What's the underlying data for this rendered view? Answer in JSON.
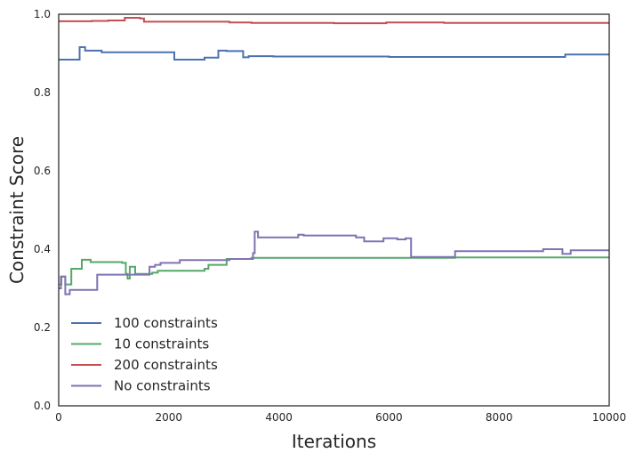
{
  "chart_data": {
    "type": "line",
    "xlabel": "Iterations",
    "ylabel": "Constraint Score",
    "xlim": [
      0,
      10000
    ],
    "ylim": [
      0.0,
      1.0
    ],
    "x_ticks": [
      0,
      2000,
      4000,
      6000,
      8000,
      10000
    ],
    "x_tick_labels": [
      "0",
      "2000",
      "4000",
      "6000",
      "8000",
      "10000"
    ],
    "y_ticks": [
      0.0,
      0.2,
      0.4,
      0.6,
      0.8,
      1.0
    ],
    "y_tick_labels": [
      "0.0",
      "0.2",
      "0.4",
      "0.6",
      "0.8",
      "1.0"
    ],
    "grid": false,
    "legend_position": "lower-left",
    "series": [
      {
        "name": "100 constraints",
        "color": "#4c72b0",
        "step": true,
        "x": [
          0,
          380,
          480,
          780,
          2100,
          2650,
          2900,
          3050,
          3350,
          3450,
          3900,
          6000,
          9200,
          10000
        ],
        "y": [
          0.884,
          0.916,
          0.907,
          0.903,
          0.884,
          0.889,
          0.907,
          0.906,
          0.89,
          0.893,
          0.892,
          0.891,
          0.897,
          0.897
        ]
      },
      {
        "name": "10 constraints",
        "color": "#55a868",
        "step": true,
        "x": [
          0,
          50,
          120,
          230,
          420,
          580,
          1150,
          1220,
          1250,
          1290,
          1390,
          1700,
          1800,
          2650,
          2720,
          3050,
          3500,
          7200,
          10000
        ],
        "y": [
          0.31,
          0.33,
          0.31,
          0.35,
          0.373,
          0.367,
          0.365,
          0.337,
          0.325,
          0.355,
          0.337,
          0.34,
          0.345,
          0.35,
          0.36,
          0.375,
          0.378,
          0.379,
          0.379
        ]
      },
      {
        "name": "200 constraints",
        "color": "#c44e52",
        "step": true,
        "x": [
          0,
          600,
          900,
          1200,
          1480,
          1550,
          3100,
          3500,
          5000,
          5950,
          7000,
          9000,
          10000
        ],
        "y": [
          0.982,
          0.983,
          0.984,
          0.991,
          0.989,
          0.981,
          0.979,
          0.978,
          0.977,
          0.979,
          0.978,
          0.978,
          0.978
        ]
      },
      {
        "name": "No constraints",
        "color": "#8172b2",
        "step": true,
        "x": [
          0,
          40,
          120,
          200,
          700,
          1650,
          1750,
          1850,
          2200,
          3100,
          3530,
          3560,
          3620,
          4350,
          4450,
          5400,
          5550,
          5900,
          6150,
          6300,
          6400,
          7200,
          8800,
          9150,
          9300,
          10000
        ],
        "y": [
          0.3,
          0.33,
          0.285,
          0.296,
          0.335,
          0.355,
          0.36,
          0.365,
          0.372,
          0.375,
          0.39,
          0.445,
          0.43,
          0.437,
          0.435,
          0.43,
          0.42,
          0.428,
          0.425,
          0.428,
          0.38,
          0.395,
          0.4,
          0.388,
          0.397,
          0.397
        ]
      }
    ]
  }
}
